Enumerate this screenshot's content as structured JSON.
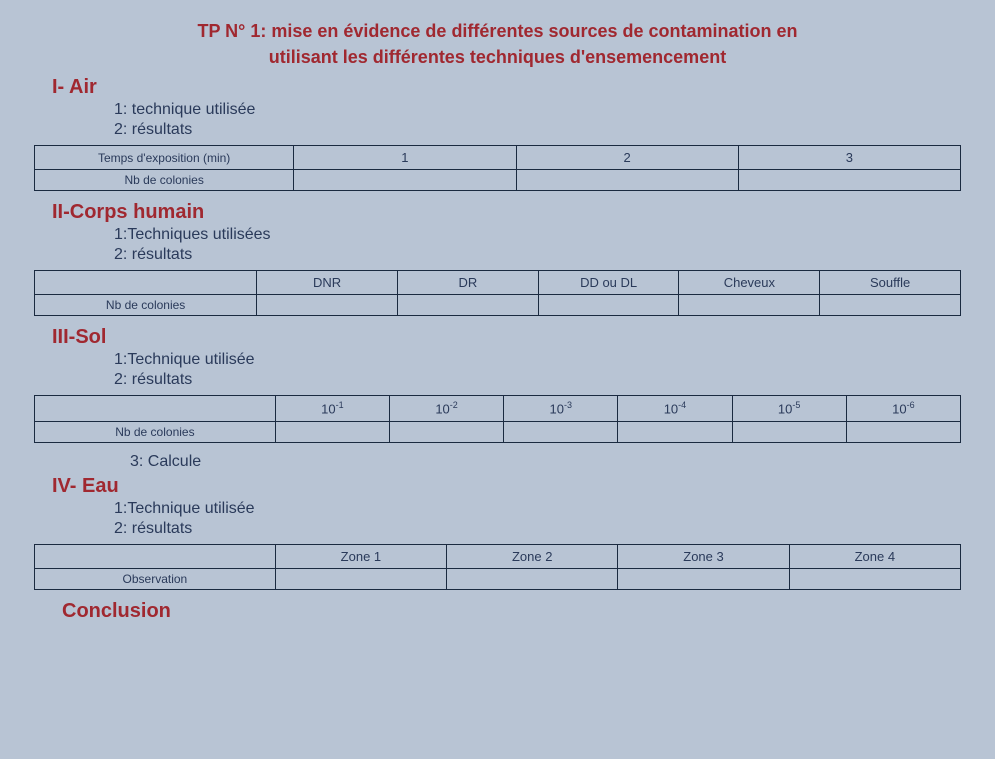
{
  "title_line1": "TP N° 1: mise en évidence de différentes sources de contamination en",
  "title_line2": "utilisant les différentes techniques d'ensemencement",
  "conclusion": "Conclusion",
  "section1": {
    "heading": "I- Air",
    "sub1": "1: technique utilisée",
    "sub2": "2: résultats",
    "table": {
      "row1": [
        "Temps d'exposition (min)",
        "1",
        "2",
        "3"
      ],
      "row2": [
        "Nb de colonies",
        "",
        "",
        ""
      ]
    },
    "col_widths": [
      "28%",
      "24%",
      "24%",
      "24%"
    ]
  },
  "section2": {
    "heading": "II-Corps humain",
    "sub1": "1:Techniques utilisées",
    "sub2": "2: résultats",
    "table": {
      "row1": [
        "",
        "DNR",
        "DR",
        "DD ou DL",
        "Cheveux",
        "Souffle"
      ],
      "row2": [
        "Nb de colonies",
        "",
        "",
        "",
        "",
        ""
      ]
    },
    "col_widths": [
      "24%",
      "15.2%",
      "15.2%",
      "15.2%",
      "15.2%",
      "15.2%"
    ]
  },
  "section3": {
    "heading": "III-Sol",
    "sub1": "1:Technique utilisée",
    "sub2": "2: résultats",
    "sub3": "3: Calcule",
    "table": {
      "row1_labels": [
        "",
        "10",
        "10",
        "10",
        "10",
        "10",
        "10"
      ],
      "row1_sups": [
        "",
        "-1",
        "-2",
        "-3",
        "-4",
        "-5",
        "-6"
      ],
      "row2": [
        "Nb de colonies",
        "",
        "",
        "",
        "",
        "",
        ""
      ]
    },
    "col_widths": [
      "26%",
      "12.33%",
      "12.33%",
      "12.33%",
      "12.33%",
      "12.33%",
      "12.33%"
    ]
  },
  "section4": {
    "heading": "IV- Eau",
    "sub1": "1:Technique utilisée",
    "sub2": "2: résultats",
    "table": {
      "row1": [
        "",
        "Zone 1",
        "Zone 2",
        "Zone 3",
        "Zone 4"
      ],
      "row2": [
        "Observation",
        "",
        "",
        "",
        ""
      ]
    },
    "col_widths": [
      "26%",
      "18.5%",
      "18.5%",
      "18.5%",
      "18.5%"
    ]
  }
}
